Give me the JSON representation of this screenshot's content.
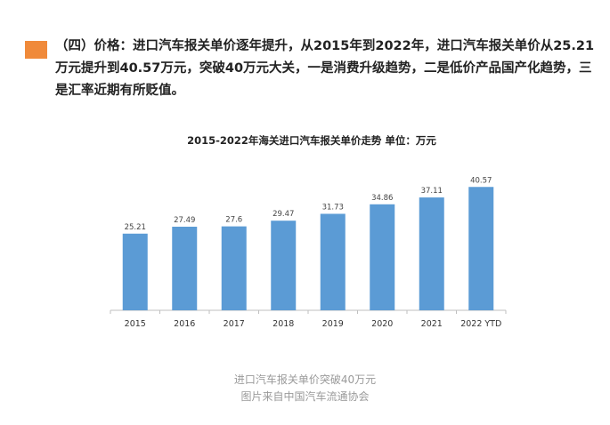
{
  "headline": {
    "icon": "orange-square-icon",
    "accent_color": "#f08a3a",
    "text": "（四）价格：进口汽车报关单价逐年提升，从2015年到2022年，进口汽车报关单价从25.21万元提升到40.57万元，突破40万元大关，一是消费升级趋势，二是低价产品国产化趋势，三是汇率近期有所贬值。"
  },
  "chart_data": {
    "type": "bar",
    "title": "2015-2022年海关进口汽车报关单价走势 单位：万元",
    "categories": [
      "2015",
      "2016",
      "2017",
      "2018",
      "2019",
      "2020",
      "2021",
      "2022 YTD"
    ],
    "values": [
      25.21,
      27.49,
      27.6,
      29.47,
      31.73,
      34.86,
      37.11,
      40.57
    ],
    "value_labels": [
      "25.21",
      "27.49",
      "27.6",
      "29.47",
      "31.73",
      "34.86",
      "37.11",
      "40.57"
    ],
    "bar_color": "#5b9bd5",
    "ylim": [
      0,
      50
    ],
    "grid": false,
    "legend": "none"
  },
  "caption": {
    "line1": "进口汽车报关单价突破40万元",
    "line2": "图片来自中国汽车流通协会"
  }
}
